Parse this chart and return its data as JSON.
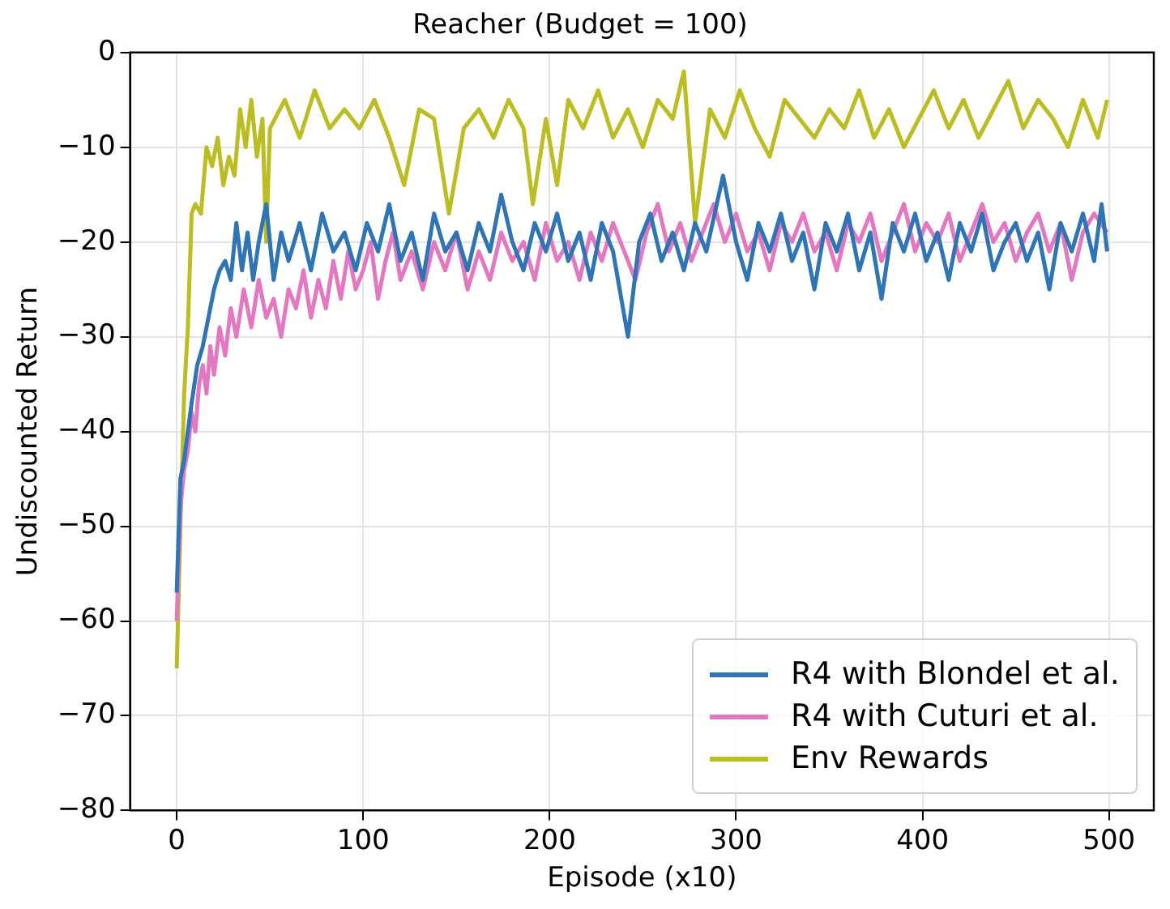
{
  "chart_data": {
    "type": "line",
    "title": "Reacher (Budget = 100)",
    "xlabel": "Episode (x10)",
    "ylabel": "Undiscounted Return",
    "xlim": [
      -25,
      524
    ],
    "xticks": [
      0,
      100,
      200,
      300,
      400,
      500
    ],
    "ylim": [
      -80,
      0
    ],
    "yticks": [
      -80,
      -70,
      -60,
      -50,
      -40,
      -30,
      -20,
      -10,
      0
    ],
    "grid": true,
    "legend": "bottom right",
    "marker": "none",
    "line_style": "solid",
    "series": [
      {
        "name": "R4 with Blondel et al.",
        "color": "#2f74b5",
        "x": [
          0,
          2,
          4,
          6,
          8,
          11,
          14,
          17,
          20,
          23,
          26,
          29,
          32,
          35,
          38,
          41,
          44,
          48,
          52,
          56,
          60,
          66,
          72,
          78,
          84,
          90,
          96,
          102,
          108,
          114,
          120,
          126,
          132,
          138,
          144,
          150,
          156,
          162,
          168,
          174,
          180,
          186,
          192,
          198,
          204,
          210,
          216,
          222,
          228,
          234,
          242,
          248,
          254,
          260,
          266,
          272,
          278,
          284,
          293,
          300,
          306,
          312,
          318,
          324,
          330,
          336,
          342,
          348,
          354,
          360,
          366,
          372,
          378,
          384,
          390,
          396,
          402,
          408,
          414,
          420,
          426,
          432,
          438,
          444,
          450,
          456,
          462,
          468,
          474,
          480,
          486,
          492,
          496,
          499
        ],
        "values": [
          -57,
          -45,
          -43,
          -40,
          -37,
          -33,
          -31,
          -28,
          -25,
          -23,
          -22,
          -24,
          -18,
          -23,
          -19,
          -24,
          -20,
          -16,
          -24,
          -19,
          -22,
          -18,
          -23,
          -17,
          -21,
          -19,
          -23,
          -18,
          -21,
          -16,
          -22,
          -19,
          -24,
          -17,
          -21,
          -19,
          -23,
          -18,
          -21,
          -15,
          -20,
          -23,
          -18,
          -21,
          -17,
          -22,
          -19,
          -24,
          -18,
          -21,
          -30,
          -20,
          -17,
          -22,
          -19,
          -23,
          -18,
          -21,
          -13,
          -20,
          -24,
          -18,
          -21,
          -17,
          -22,
          -19,
          -25,
          -18,
          -21,
          -17,
          -23,
          -19,
          -26,
          -18,
          -21,
          -17,
          -22,
          -19,
          -24,
          -18,
          -21,
          -17,
          -23,
          -20,
          -18,
          -22,
          -19,
          -25,
          -18,
          -21,
          -17,
          -22,
          -16,
          -21
        ]
      },
      {
        "name": "R4 with Cuturi et al.",
        "color": "#e377c2",
        "x": [
          0,
          2,
          4,
          6,
          8,
          10,
          12,
          14,
          16,
          18,
          20,
          23,
          26,
          29,
          32,
          36,
          40,
          44,
          48,
          52,
          56,
          60,
          64,
          68,
          72,
          76,
          80,
          84,
          88,
          92,
          96,
          100,
          104,
          108,
          112,
          116,
          120,
          126,
          132,
          138,
          144,
          150,
          156,
          162,
          168,
          174,
          180,
          186,
          192,
          198,
          204,
          210,
          216,
          222,
          228,
          234,
          240,
          246,
          252,
          258,
          264,
          270,
          276,
          282,
          288,
          294,
          300,
          306,
          312,
          318,
          324,
          330,
          336,
          342,
          348,
          354,
          360,
          366,
          372,
          378,
          384,
          390,
          396,
          402,
          408,
          414,
          420,
          426,
          432,
          438,
          444,
          450,
          456,
          462,
          468,
          474,
          480,
          486,
          492,
          499
        ],
        "values": [
          -60,
          -48,
          -44,
          -42,
          -38,
          -40,
          -35,
          -33,
          -36,
          -31,
          -34,
          -29,
          -32,
          -27,
          -30,
          -25,
          -29,
          -24,
          -28,
          -26,
          -30,
          -25,
          -27,
          -23,
          -28,
          -24,
          -27,
          -22,
          -26,
          -21,
          -25,
          -23,
          -20,
          -26,
          -22,
          -19,
          -24,
          -21,
          -25,
          -20,
          -23,
          -19,
          -25,
          -21,
          -24,
          -19,
          -22,
          -20,
          -24,
          -18,
          -22,
          -20,
          -24,
          -19,
          -22,
          -18,
          -21,
          -24,
          -19,
          -16,
          -21,
          -18,
          -22,
          -19,
          -16,
          -20,
          -17,
          -21,
          -19,
          -23,
          -18,
          -20,
          -17,
          -21,
          -19,
          -23,
          -18,
          -20,
          -17,
          -22,
          -19,
          -16,
          -21,
          -18,
          -20,
          -17,
          -22,
          -19,
          -16,
          -20,
          -18,
          -22,
          -19,
          -17,
          -21,
          -18,
          -24,
          -19,
          -17,
          -19
        ]
      },
      {
        "name": "Env Rewards",
        "color": "#bcbd22",
        "x": [
          0,
          2,
          4,
          6,
          8,
          10,
          13,
          16,
          19,
          22,
          25,
          28,
          31,
          34,
          37,
          40,
          43,
          46,
          48,
          50,
          58,
          66,
          74,
          82,
          90,
          98,
          106,
          114,
          122,
          130,
          138,
          146,
          154,
          162,
          170,
          178,
          186,
          191,
          198,
          204,
          210,
          218,
          226,
          234,
          242,
          250,
          258,
          266,
          272,
          278,
          286,
          294,
          302,
          310,
          318,
          326,
          334,
          342,
          350,
          358,
          366,
          374,
          382,
          390,
          398,
          406,
          414,
          422,
          430,
          438,
          446,
          454,
          462,
          470,
          478,
          486,
          494,
          499
        ],
        "values": [
          -65,
          -50,
          -36,
          -29,
          -17,
          -16,
          -17,
          -10,
          -12,
          -9,
          -14,
          -11,
          -13,
          -6,
          -10,
          -5,
          -11,
          -7,
          -20,
          -8,
          -5,
          -9,
          -4,
          -8,
          -6,
          -8,
          -5,
          -9,
          -14,
          -6,
          -7,
          -17,
          -8,
          -6,
          -9,
          -5,
          -8,
          -16,
          -7,
          -14,
          -5,
          -8,
          -4,
          -9,
          -6,
          -10,
          -5,
          -7,
          -2,
          -18,
          -6,
          -9,
          -4,
          -8,
          -11,
          -5,
          -7,
          -9,
          -6,
          -8,
          -4,
          -9,
          -6,
          -10,
          -7,
          -4,
          -8,
          -5,
          -9,
          -6,
          -3,
          -8,
          -5,
          -7,
          -10,
          -5,
          -9,
          -5
        ]
      }
    ]
  }
}
